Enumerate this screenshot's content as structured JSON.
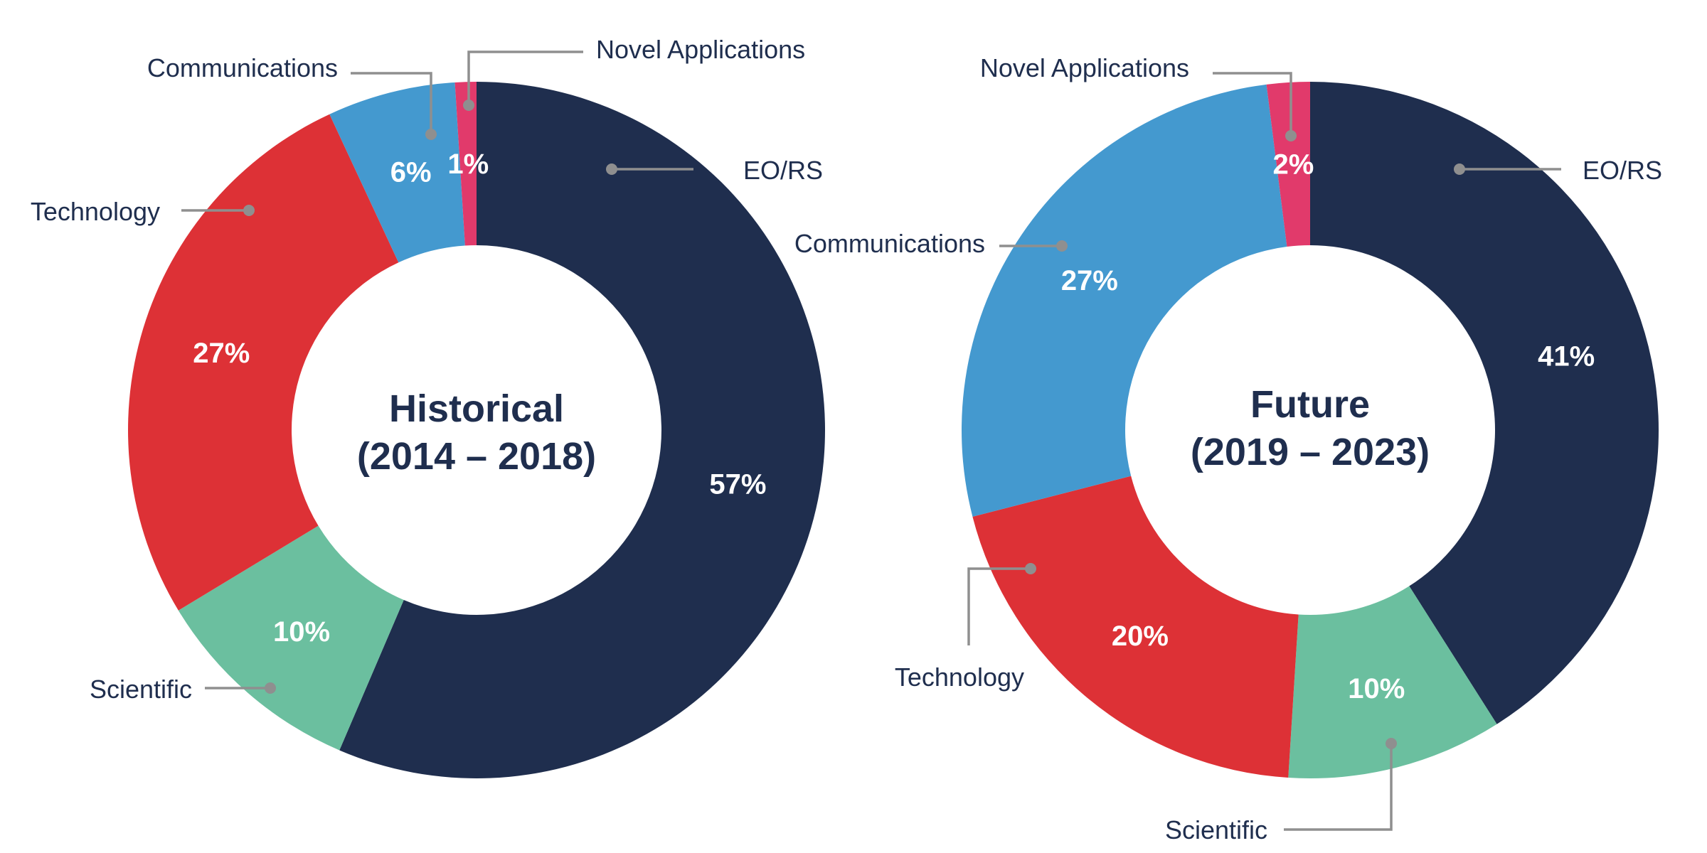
{
  "colors": {
    "EO/RS": "#1f2e4e",
    "Scientific": "#6bbf9f",
    "Technology": "#dd3136",
    "Communications": "#4499cf",
    "Novel Applications": "#e13a6b"
  },
  "chart_data": [
    {
      "type": "pie",
      "donut": true,
      "title": "Historical",
      "subtitle": "(2014 – 2018)",
      "categories": [
        "EO/RS",
        "Scientific",
        "Technology",
        "Communications",
        "Novel Applications"
      ],
      "values": [
        57,
        10,
        27,
        6,
        1
      ],
      "value_labels": [
        "57%",
        "10%",
        "27%",
        "6%",
        "1%"
      ],
      "legend": "callouts"
    },
    {
      "type": "pie",
      "donut": true,
      "title": "Future",
      "subtitle": "(2019 – 2023)",
      "categories": [
        "EO/RS",
        "Scientific",
        "Technology",
        "Communications",
        "Novel Applications"
      ],
      "values": [
        41,
        10,
        20,
        27,
        2
      ],
      "value_labels": [
        "41%",
        "10%",
        "20%",
        "27%",
        "2%"
      ],
      "legend": "callouts"
    }
  ]
}
